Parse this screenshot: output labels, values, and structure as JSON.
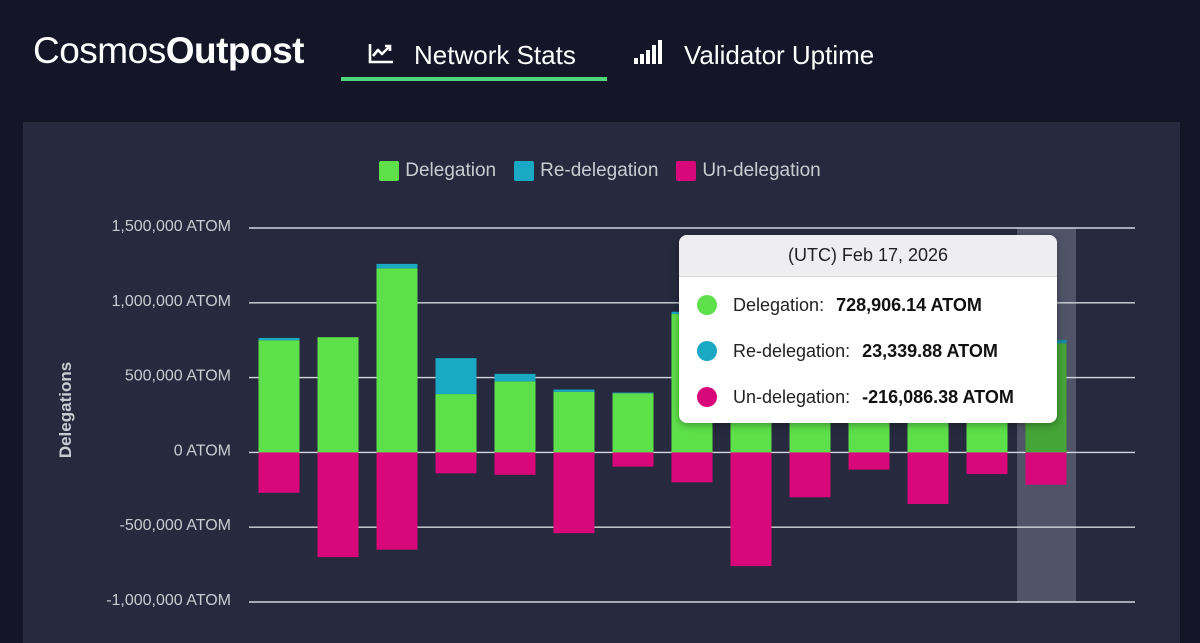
{
  "header": {
    "logo_regular": "Cosmos",
    "logo_bold": "Outpost",
    "tabs": [
      {
        "label": "Network Stats",
        "icon": "line-chart-icon",
        "active": true
      },
      {
        "label": "Validator Uptime",
        "icon": "signal-bars-icon",
        "active": false
      }
    ],
    "accent_color": "#4fd67a"
  },
  "legend": [
    {
      "label": "Delegation",
      "color": "#5ee04a"
    },
    {
      "label": "Re-delegation",
      "color": "#19a9c4"
    },
    {
      "label": "Un-delegation",
      "color": "#d8087a"
    }
  ],
  "tooltip": {
    "title": "(UTC) Feb 17, 2026",
    "rows": [
      {
        "label": "Delegation:",
        "value": "728,906.14 ATOM",
        "color": "#5ee04a"
      },
      {
        "label": "Re-delegation:",
        "value": "23,339.88 ATOM",
        "color": "#19a9c4"
      },
      {
        "label": "Un-delegation:",
        "value": "-216,086.38 ATOM",
        "color": "#d8087a"
      }
    ]
  },
  "chart_data": {
    "type": "bar",
    "stacked": true,
    "ylabel": "Delegations",
    "ylim": [
      -1000000,
      1500000
    ],
    "yticks": [
      1500000,
      1000000,
      500000,
      0,
      -500000,
      -1000000
    ],
    "ytick_labels": [
      "1,500,000 ATOM",
      "1,000,000 ATOM",
      "500,000 ATOM",
      "0 ATOM",
      "-500,000 ATOM",
      "-1,000,000 ATOM"
    ],
    "grid": true,
    "legend_position": "top-center",
    "highlighted_index": 13,
    "series": [
      {
        "name": "Delegation",
        "color": "#5ee04a",
        "values": [
          750000,
          770000,
          1230000,
          390000,
          475000,
          405000,
          395000,
          925000,
          890000,
          880000,
          925000,
          910000,
          820000,
          728906.14
        ]
      },
      {
        "name": "Re-delegation",
        "color": "#19a9c4",
        "values": [
          15000,
          0,
          30000,
          240000,
          50000,
          15000,
          5000,
          15000,
          15000,
          15000,
          15000,
          15000,
          15000,
          23339.88
        ]
      },
      {
        "name": "Un-delegation",
        "color": "#d8087a",
        "values": [
          -270000,
          -700000,
          -650000,
          -140000,
          -150000,
          -540000,
          -95000,
          -200000,
          -760000,
          -300000,
          -115000,
          -345000,
          -145000,
          -216086.38
        ]
      }
    ]
  }
}
